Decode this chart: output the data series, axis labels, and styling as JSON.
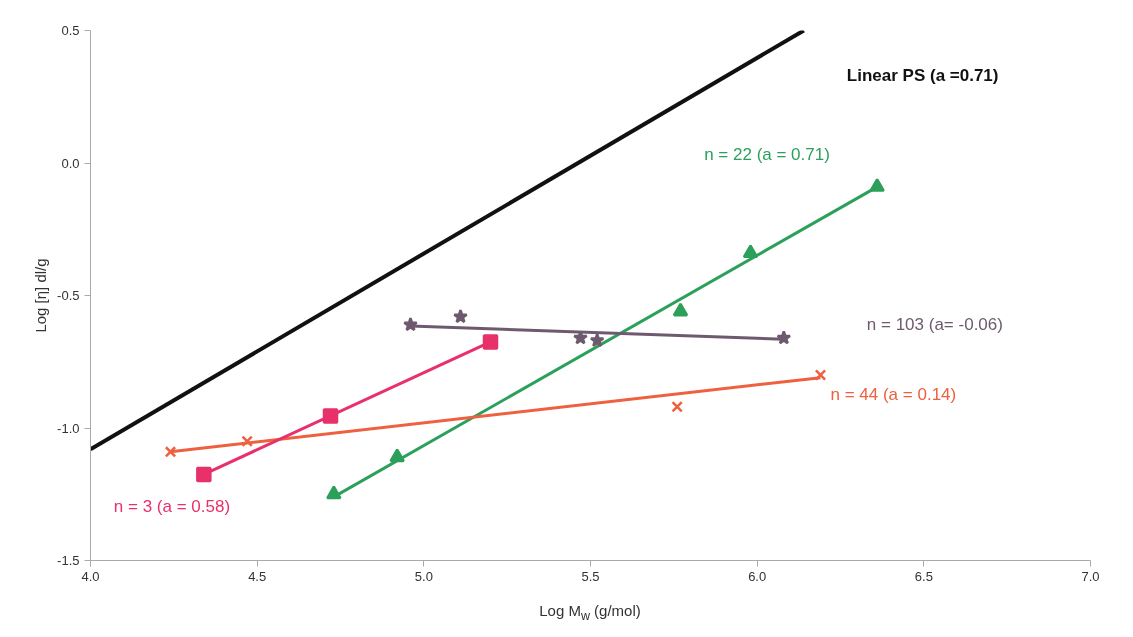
{
  "chart_data": {
    "type": "scatter",
    "xlabel": "Log M$_{w}$ (g/mol)",
    "ylabel": "Log [η] dl/g",
    "xlim": [
      4.0,
      7.0
    ],
    "ylim": [
      -1.5,
      0.5
    ],
    "xticks": [
      {
        "value": 4.0,
        "label": "4.0"
      },
      {
        "value": 4.5,
        "label": "4.5"
      },
      {
        "value": 5.0,
        "label": "5.0"
      },
      {
        "value": 5.5,
        "label": "5.5"
      },
      {
        "value": 6.0,
        "label": "6.0"
      },
      {
        "value": 6.5,
        "label": "6.5"
      },
      {
        "value": 7.0,
        "label": "7.0"
      }
    ],
    "yticks": [
      {
        "value": -1.5,
        "label": "-1.5"
      },
      {
        "value": -1.0,
        "label": "-1.0"
      },
      {
        "value": -0.5,
        "label": "-0.5"
      },
      {
        "value": 0.0,
        "label": "0.0"
      },
      {
        "value": 0.5,
        "label": "0.5"
      }
    ],
    "series": [
      {
        "type": "line",
        "name": "Linear PS (a =0.71)",
        "color": "#111111",
        "x": [
          4.0,
          6.14
        ],
        "values": [
          -1.08,
          0.5
        ]
      },
      {
        "name": "n = 22 (a = 0.71)",
        "color": "#2ca05a",
        "marker": "triangle",
        "x": [
          4.73,
          4.92,
          5.77,
          5.98,
          6.36
        ],
        "values": [
          -1.25,
          -1.11,
          -0.56,
          -0.34,
          -0.09
        ]
      },
      {
        "type": "line",
        "color": "#2ca05a",
        "x": [
          4.73,
          6.36
        ],
        "values": [
          -1.26,
          -0.09
        ]
      },
      {
        "name": "n = 103 (a= -0.06)",
        "color": "#6e5a6e",
        "marker": "star",
        "x": [
          4.96,
          5.11,
          5.47,
          5.52,
          6.08
        ],
        "values": [
          -0.61,
          -0.58,
          -0.66,
          -0.67,
          -0.66
        ]
      },
      {
        "type": "line",
        "color": "#6e5a6e",
        "x": [
          4.96,
          6.08
        ],
        "values": [
          -0.615,
          -0.665
        ]
      },
      {
        "name": "n = 44 (a = 0.14)",
        "color": "#ee6040",
        "marker": "cross",
        "x": [
          4.24,
          4.47,
          5.76,
          6.19
        ],
        "values": [
          -1.09,
          -1.05,
          -0.92,
          -0.8
        ]
      },
      {
        "type": "line",
        "color": "#ee6040",
        "x": [
          4.24,
          6.19
        ],
        "values": [
          -1.09,
          -0.81
        ]
      },
      {
        "name": "n = 3 (a = 0.58)",
        "color": "#e8306a",
        "marker": "square",
        "x": [
          4.34,
          4.72,
          5.2
        ],
        "values": [
          -1.175,
          -0.955,
          -0.675
        ]
      },
      {
        "type": "line",
        "color": "#e8306a",
        "x": [
          4.34,
          5.2
        ],
        "values": [
          -1.175,
          -0.675
        ]
      }
    ]
  }
}
